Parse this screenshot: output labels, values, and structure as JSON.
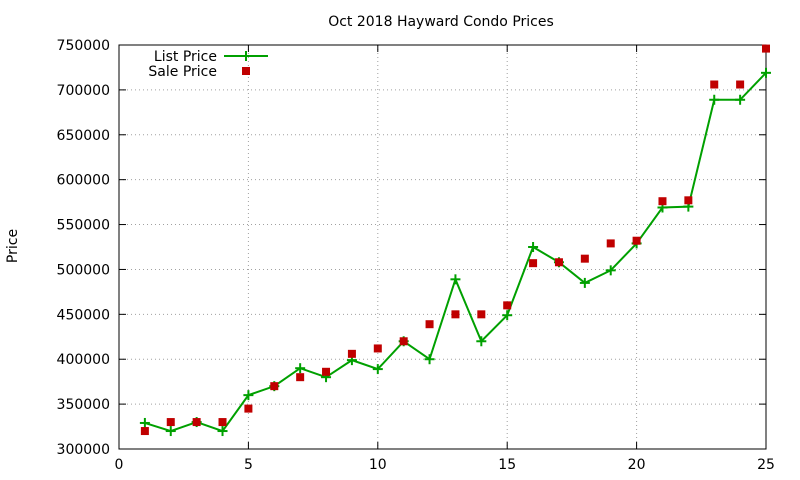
{
  "chart_data": {
    "type": "line",
    "title": "Oct 2018 Hayward Condo Prices",
    "xlabel": "",
    "ylabel": "Price",
    "xlim": [
      0,
      25
    ],
    "ylim": [
      300000,
      750000
    ],
    "xticks": [
      "0",
      "5",
      "10",
      "15",
      "20",
      "25"
    ],
    "xtick_values": [
      0,
      5,
      10,
      15,
      20,
      25
    ],
    "yticks": [
      "300000",
      "350000",
      "400000",
      "450000",
      "500000",
      "550000",
      "600000",
      "650000",
      "700000",
      "750000"
    ],
    "ytick_values": [
      300000,
      350000,
      400000,
      450000,
      500000,
      550000,
      600000,
      650000,
      700000,
      750000
    ],
    "grid": true,
    "legend_position": "top-left",
    "x": [
      1,
      2,
      3,
      4,
      5,
      6,
      7,
      8,
      9,
      10,
      11,
      12,
      13,
      14,
      15,
      16,
      17,
      18,
      19,
      20,
      21,
      22,
      23,
      24,
      25
    ],
    "series": [
      {
        "name": "List Price",
        "style": "line-with-plus-markers",
        "color": "#00a000",
        "values": [
          329000,
          320000,
          330000,
          320000,
          360000,
          370000,
          390000,
          380000,
          399000,
          389000,
          420000,
          400000,
          489000,
          420000,
          449000,
          525000,
          508000,
          485000,
          499000,
          529000,
          569000,
          570000,
          689000,
          689000,
          719000
        ]
      },
      {
        "name": "Sale Price",
        "style": "square-markers",
        "color": "#c00000",
        "values": [
          320000,
          330000,
          330000,
          330000,
          345000,
          370000,
          380000,
          386000,
          406000,
          412000,
          420000,
          439000,
          450000,
          450000,
          460000,
          507000,
          508000,
          512000,
          529000,
          532000,
          576000,
          577000,
          706000,
          706000,
          746000
        ]
      }
    ]
  }
}
